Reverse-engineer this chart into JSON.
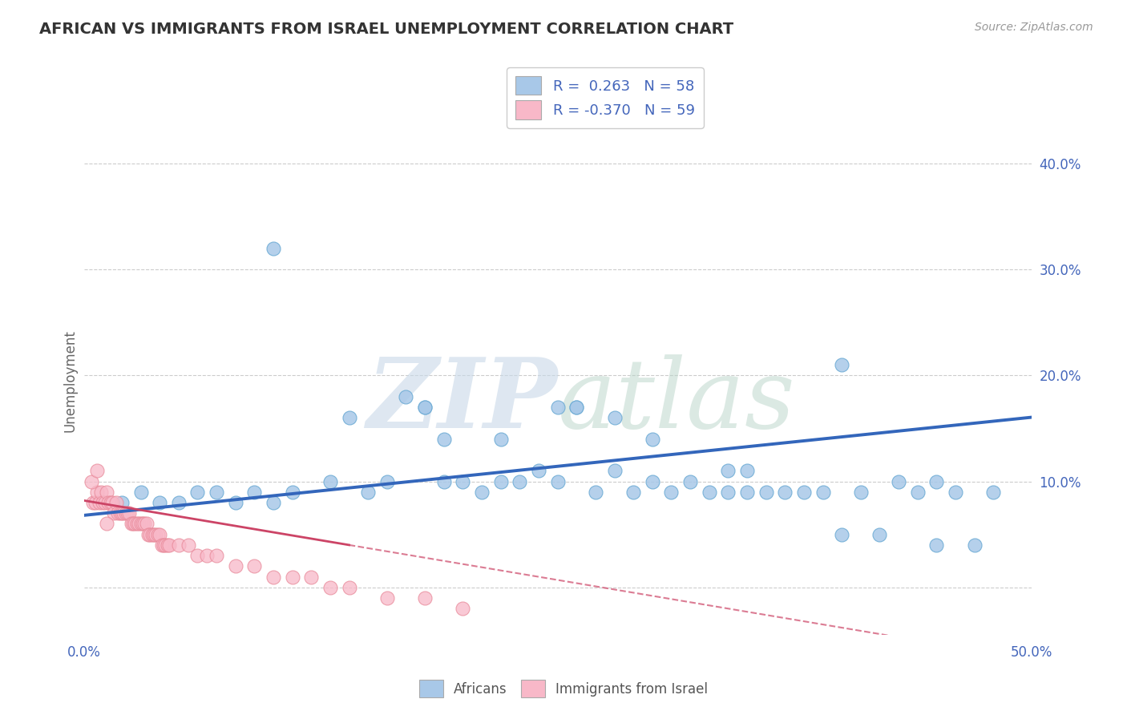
{
  "title": "AFRICAN VS IMMIGRANTS FROM ISRAEL UNEMPLOYMENT CORRELATION CHART",
  "source": "Source: ZipAtlas.com",
  "ylabel": "Unemployment",
  "xlim": [
    0.0,
    0.5
  ],
  "ylim": [
    -0.045,
    0.435
  ],
  "yticks": [
    0.0,
    0.1,
    0.2,
    0.3,
    0.4
  ],
  "ytick_labels": [
    "",
    "10.0%",
    "20.0%",
    "30.0%",
    "40.0%"
  ],
  "blue_color": "#a8c8e8",
  "blue_edge_color": "#6aaad4",
  "blue_line_color": "#3366bb",
  "pink_color": "#f8b8c8",
  "pink_edge_color": "#e88898",
  "pink_line_color": "#cc4466",
  "title_color": "#333333",
  "axis_label_color": "#4466bb",
  "background_color": "#ffffff",
  "grid_color": "#cccccc",
  "blue_intercept": 0.068,
  "blue_slope": 0.185,
  "pink_intercept": 0.082,
  "pink_slope": -0.3,
  "blue_scatter_x": [
    0.02,
    0.03,
    0.04,
    0.05,
    0.06,
    0.07,
    0.08,
    0.09,
    0.1,
    0.11,
    0.13,
    0.15,
    0.16,
    0.17,
    0.18,
    0.19,
    0.2,
    0.21,
    0.22,
    0.23,
    0.24,
    0.25,
    0.26,
    0.27,
    0.28,
    0.29,
    0.3,
    0.31,
    0.32,
    0.33,
    0.34,
    0.35,
    0.36,
    0.37,
    0.38,
    0.39,
    0.4,
    0.41,
    0.42,
    0.43,
    0.44,
    0.45,
    0.46,
    0.47,
    0.48,
    0.3,
    0.25,
    0.22,
    0.18,
    0.14,
    0.1,
    0.19,
    0.26,
    0.34,
    0.4,
    0.45,
    0.35,
    0.28
  ],
  "blue_scatter_y": [
    0.08,
    0.09,
    0.08,
    0.08,
    0.09,
    0.09,
    0.08,
    0.09,
    0.08,
    0.09,
    0.1,
    0.09,
    0.1,
    0.18,
    0.17,
    0.1,
    0.1,
    0.09,
    0.1,
    0.1,
    0.11,
    0.1,
    0.17,
    0.09,
    0.11,
    0.09,
    0.1,
    0.09,
    0.1,
    0.09,
    0.09,
    0.11,
    0.09,
    0.09,
    0.09,
    0.09,
    0.05,
    0.09,
    0.05,
    0.1,
    0.09,
    0.04,
    0.09,
    0.04,
    0.09,
    0.14,
    0.17,
    0.14,
    0.17,
    0.16,
    0.32,
    0.14,
    0.17,
    0.11,
    0.21,
    0.1,
    0.09,
    0.16
  ],
  "pink_scatter_x": [
    0.005,
    0.006,
    0.007,
    0.008,
    0.009,
    0.01,
    0.011,
    0.012,
    0.013,
    0.014,
    0.015,
    0.016,
    0.017,
    0.018,
    0.019,
    0.02,
    0.021,
    0.022,
    0.023,
    0.024,
    0.025,
    0.026,
    0.027,
    0.028,
    0.029,
    0.03,
    0.031,
    0.032,
    0.033,
    0.034,
    0.035,
    0.036,
    0.037,
    0.038,
    0.039,
    0.04,
    0.041,
    0.042,
    0.043,
    0.044,
    0.045,
    0.05,
    0.055,
    0.06,
    0.065,
    0.07,
    0.08,
    0.09,
    0.1,
    0.11,
    0.12,
    0.13,
    0.14,
    0.16,
    0.18,
    0.2,
    0.004,
    0.007,
    0.012
  ],
  "pink_scatter_y": [
    0.08,
    0.08,
    0.09,
    0.08,
    0.09,
    0.08,
    0.08,
    0.09,
    0.08,
    0.08,
    0.08,
    0.07,
    0.08,
    0.07,
    0.07,
    0.07,
    0.07,
    0.07,
    0.07,
    0.07,
    0.06,
    0.06,
    0.06,
    0.06,
    0.06,
    0.06,
    0.06,
    0.06,
    0.06,
    0.05,
    0.05,
    0.05,
    0.05,
    0.05,
    0.05,
    0.05,
    0.04,
    0.04,
    0.04,
    0.04,
    0.04,
    0.04,
    0.04,
    0.03,
    0.03,
    0.03,
    0.02,
    0.02,
    0.01,
    0.01,
    0.01,
    0.0,
    0.0,
    -0.01,
    -0.01,
    -0.02,
    0.1,
    0.11,
    0.06
  ]
}
